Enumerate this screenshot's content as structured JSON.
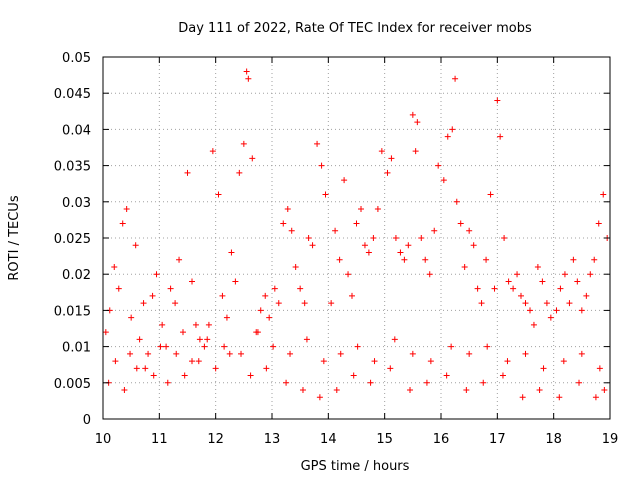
{
  "chart_data": {
    "type": "scatter",
    "title": "Day 111 of 2022, Rate Of TEC Index for receiver mobs",
    "xlabel": "GPS time / hours",
    "ylabel": "ROTI / TECUs",
    "xlim": [
      10,
      19
    ],
    "ylim": [
      0,
      0.05
    ],
    "grid": true,
    "marker": "plus",
    "color": "#ff0000",
    "x_ticks": [
      10,
      11,
      12,
      13,
      14,
      15,
      16,
      17,
      18,
      19
    ],
    "x_tick_labels": [
      "10",
      "11",
      "12",
      "13",
      "14",
      "15",
      "16",
      "17",
      "18",
      "19"
    ],
    "y_ticks": [
      0,
      0.005,
      0.01,
      0.015,
      0.02,
      0.025,
      0.03,
      0.035,
      0.04,
      0.045,
      0.05
    ],
    "y_tick_labels": [
      "0",
      "0.005",
      "0.01",
      "0.015",
      "0.02",
      "0.025",
      "0.03",
      "0.035",
      "0.04",
      "0.045",
      "0.05"
    ],
    "series": [
      {
        "name": "ROTI",
        "x": [
          10.05,
          10.12,
          10.2,
          10.28,
          10.35,
          10.42,
          10.5,
          10.58,
          10.65,
          10.72,
          10.8,
          10.88,
          10.95,
          11.05,
          11.12,
          11.2,
          11.28,
          11.35,
          11.42,
          11.5,
          11.58,
          11.65,
          11.72,
          11.8,
          11.88,
          11.95,
          12.05,
          12.12,
          12.2,
          12.28,
          12.35,
          12.42,
          12.5,
          12.55,
          12.58,
          12.65,
          12.72,
          12.8,
          12.88,
          12.95,
          13.05,
          13.12,
          13.2,
          13.28,
          13.35,
          13.42,
          13.5,
          13.58,
          13.65,
          13.72,
          13.8,
          13.88,
          13.95,
          14.05,
          14.12,
          14.2,
          14.28,
          14.35,
          14.42,
          14.5,
          14.58,
          14.65,
          14.72,
          14.8,
          14.88,
          14.95,
          15.05,
          15.12,
          15.2,
          15.28,
          15.35,
          15.42,
          15.5,
          15.55,
          15.58,
          15.65,
          15.72,
          15.8,
          15.88,
          15.95,
          16.05,
          16.12,
          16.2,
          16.25,
          16.28,
          16.35,
          16.42,
          16.5,
          16.58,
          16.65,
          16.72,
          16.8,
          16.88,
          16.95,
          17.0,
          17.05,
          17.12,
          17.2,
          17.28,
          17.35,
          17.42,
          17.5,
          17.58,
          17.65,
          17.72,
          17.8,
          17.88,
          17.95,
          18.05,
          18.12,
          18.2,
          18.28,
          18.35,
          18.42,
          18.5,
          18.58,
          18.65,
          18.72,
          18.8,
          18.88,
          18.95,
          10.1,
          10.38,
          10.6,
          10.9,
          11.15,
          11.45,
          11.7,
          12.0,
          12.25,
          12.62,
          12.9,
          13.25,
          13.55,
          13.85,
          14.15,
          14.45,
          14.75,
          15.1,
          15.45,
          15.75,
          16.1,
          16.45,
          16.75,
          17.1,
          17.45,
          17.75,
          18.1,
          18.45,
          18.75,
          18.9,
          10.22,
          10.48,
          10.75,
          11.02,
          11.3,
          11.58,
          11.85,
          12.15,
          12.45,
          12.75,
          13.02,
          13.32,
          13.62,
          13.92,
          14.22,
          14.52,
          14.82,
          15.18,
          15.5,
          15.82,
          16.18,
          16.5,
          16.82,
          17.18,
          17.5,
          17.82,
          18.18,
          18.5,
          18.82
        ],
        "y": [
          0.012,
          0.015,
          0.021,
          0.018,
          0.027,
          0.029,
          0.014,
          0.024,
          0.011,
          0.016,
          0.009,
          0.017,
          0.02,
          0.013,
          0.01,
          0.018,
          0.016,
          0.022,
          0.012,
          0.034,
          0.019,
          0.013,
          0.011,
          0.01,
          0.013,
          0.037,
          0.031,
          0.017,
          0.014,
          0.023,
          0.019,
          0.034,
          0.038,
          0.048,
          0.047,
          0.036,
          0.012,
          0.015,
          0.017,
          0.014,
          0.018,
          0.016,
          0.027,
          0.029,
          0.026,
          0.021,
          0.018,
          0.016,
          0.025,
          0.024,
          0.038,
          0.035,
          0.031,
          0.016,
          0.026,
          0.022,
          0.033,
          0.02,
          0.017,
          0.027,
          0.029,
          0.024,
          0.023,
          0.025,
          0.029,
          0.037,
          0.034,
          0.036,
          0.025,
          0.023,
          0.022,
          0.024,
          0.042,
          0.037,
          0.041,
          0.025,
          0.022,
          0.02,
          0.026,
          0.035,
          0.033,
          0.039,
          0.04,
          0.047,
          0.03,
          0.027,
          0.021,
          0.026,
          0.024,
          0.018,
          0.016,
          0.022,
          0.031,
          0.018,
          0.044,
          0.039,
          0.025,
          0.019,
          0.018,
          0.02,
          0.017,
          0.016,
          0.015,
          0.013,
          0.021,
          0.019,
          0.016,
          0.014,
          0.015,
          0.018,
          0.02,
          0.016,
          0.022,
          0.019,
          0.015,
          0.017,
          0.02,
          0.022,
          0.027,
          0.031,
          0.025,
          0.005,
          0.004,
          0.007,
          0.006,
          0.005,
          0.006,
          0.008,
          0.007,
          0.009,
          0.006,
          0.007,
          0.005,
          0.004,
          0.003,
          0.004,
          0.006,
          0.005,
          0.007,
          0.004,
          0.005,
          0.006,
          0.004,
          0.005,
          0.006,
          0.003,
          0.004,
          0.003,
          0.005,
          0.003,
          0.004,
          0.008,
          0.009,
          0.007,
          0.01,
          0.009,
          0.008,
          0.011,
          0.01,
          0.009,
          0.012,
          0.01,
          0.009,
          0.011,
          0.008,
          0.009,
          0.01,
          0.008,
          0.011,
          0.009,
          0.008,
          0.01,
          0.009,
          0.01,
          0.008,
          0.009,
          0.007,
          0.008,
          0.009,
          0.007
        ]
      }
    ]
  }
}
